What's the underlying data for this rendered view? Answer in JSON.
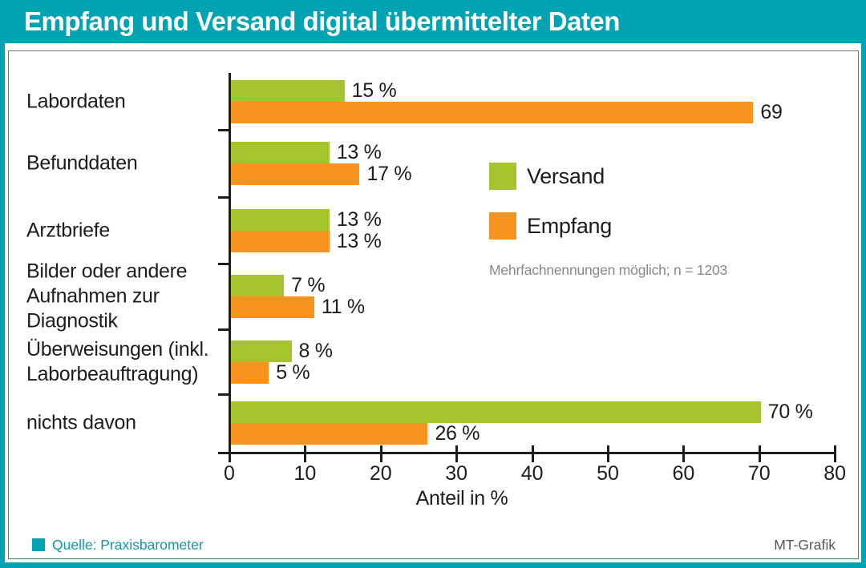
{
  "header": {
    "title": "Empfang und Versand digital übermittelter Daten"
  },
  "chart_data": {
    "type": "bar",
    "orientation": "horizontal",
    "title": "Empfang und Versand digital übermittelter Daten",
    "categories": [
      "Labordaten",
      "Befunddaten",
      "Arztbriefe",
      "Bilder oder andere Aufnahmen zur Diagnostik",
      "Überweisungen (inkl. Laborbeauftragung)",
      "nichts davon"
    ],
    "label_lines": [
      [
        "Labordaten"
      ],
      [
        "Befunddaten"
      ],
      [
        "Arztbriefe"
      ],
      [
        "Bilder oder andere",
        "Aufnahmen zur",
        "Diagnostik"
      ],
      [
        "Überweisungen (inkl.",
        "Laborbeauftragung)"
      ],
      [
        "nichts davon"
      ]
    ],
    "series": [
      {
        "name": "Versand",
        "color": "#a6c42d",
        "values": [
          15,
          13,
          13,
          7,
          8,
          70
        ],
        "labels": [
          "15 %",
          "13 %",
          "13 %",
          "7 %",
          "8 %",
          "70 %"
        ]
      },
      {
        "name": "Empfang",
        "color": "#f7941e",
        "values": [
          69,
          17,
          13,
          11,
          5,
          26
        ],
        "labels": [
          "69",
          "17 %",
          "13 %",
          "11 %",
          "5 %",
          "26 %"
        ]
      }
    ],
    "xlabel": "Anteil in %",
    "xlim": [
      0,
      80
    ],
    "xticks": [
      0,
      10,
      20,
      30,
      40,
      50,
      60,
      70,
      80
    ],
    "grid": false,
    "legend_position": "center-right",
    "note": "Mehrfachnennungen möglich; n = 1203"
  },
  "footer": {
    "source": "Quelle: Praxisbarometer",
    "credit": "MT-Grafik"
  },
  "colors": {
    "teal": "#00a3b1",
    "teal_text": "#0d9aa8",
    "green": "#a6c42d",
    "orange": "#f7941e",
    "ink": "#1d1d1b",
    "note_gray": "#878787",
    "credit_gray": "#575756"
  }
}
